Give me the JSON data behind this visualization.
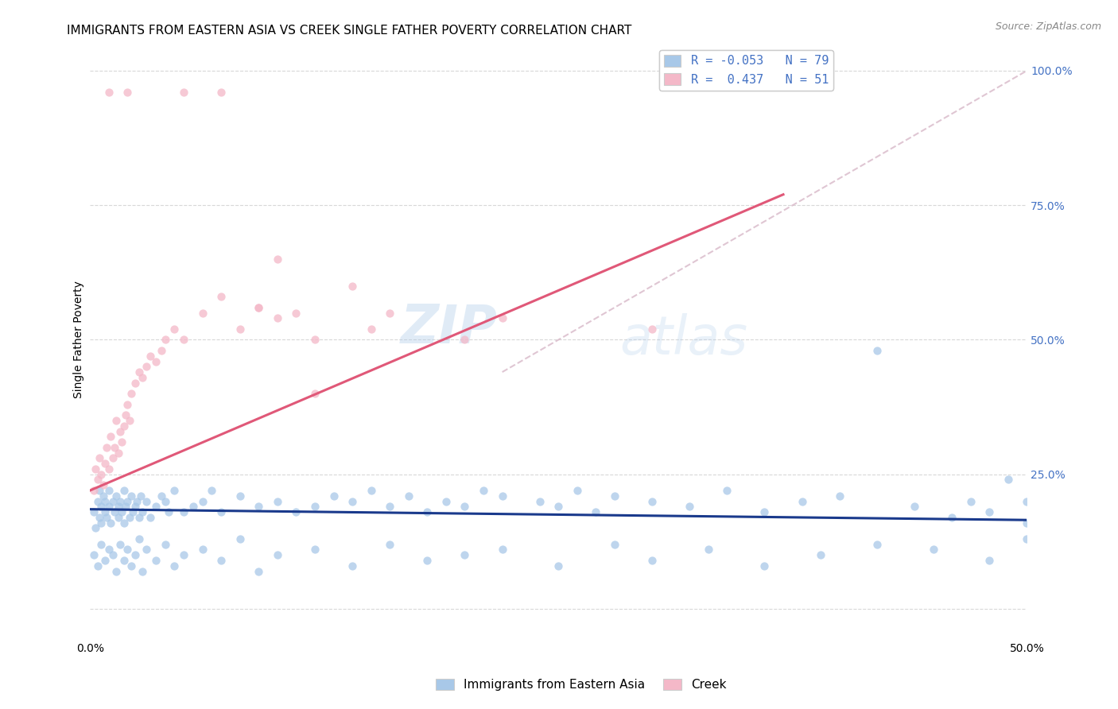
{
  "title": "IMMIGRANTS FROM EASTERN ASIA VS CREEK SINGLE FATHER POVERTY CORRELATION CHART",
  "source": "Source: ZipAtlas.com",
  "ylabel": "Single Father Poverty",
  "xlim": [
    0.0,
    0.5
  ],
  "ylim": [
    -0.05,
    1.05
  ],
  "xtick_positions": [
    0.0,
    0.1,
    0.2,
    0.3,
    0.4,
    0.5
  ],
  "xticklabels": [
    "0.0%",
    "",
    "",
    "",
    "",
    "50.0%"
  ],
  "ytick_positions": [
    0.0,
    0.25,
    0.5,
    0.75,
    1.0
  ],
  "yticklabels_right": [
    "",
    "25.0%",
    "50.0%",
    "75.0%",
    "100.0%"
  ],
  "blue_color": "#a8c8e8",
  "pink_color": "#f4b8c8",
  "blue_line_color": "#1a3a8c",
  "pink_line_color": "#e05878",
  "diag_line_color": "#d8b8c8",
  "legend_text_blue": "R = -0.053   N = 79",
  "legend_text_pink": "R =  0.437   N = 51",
  "legend_label_blue": "Immigrants from Eastern Asia",
  "legend_label_pink": "Creek",
  "watermark_zip": "ZIP",
  "watermark_atlas": "atlas",
  "blue_scatter_x": [
    0.002,
    0.003,
    0.004,
    0.005,
    0.005,
    0.006,
    0.006,
    0.007,
    0.008,
    0.008,
    0.009,
    0.01,
    0.01,
    0.011,
    0.012,
    0.013,
    0.014,
    0.015,
    0.015,
    0.016,
    0.017,
    0.018,
    0.018,
    0.019,
    0.02,
    0.021,
    0.022,
    0.023,
    0.024,
    0.025,
    0.026,
    0.027,
    0.028,
    0.03,
    0.032,
    0.035,
    0.038,
    0.04,
    0.042,
    0.045,
    0.05,
    0.055,
    0.06,
    0.065,
    0.07,
    0.08,
    0.09,
    0.1,
    0.11,
    0.12,
    0.13,
    0.14,
    0.15,
    0.16,
    0.17,
    0.18,
    0.19,
    0.2,
    0.21,
    0.22,
    0.24,
    0.25,
    0.26,
    0.27,
    0.28,
    0.3,
    0.32,
    0.34,
    0.36,
    0.38,
    0.4,
    0.42,
    0.44,
    0.46,
    0.47,
    0.48,
    0.49,
    0.5,
    0.5
  ],
  "blue_scatter_y": [
    0.18,
    0.15,
    0.2,
    0.17,
    0.22,
    0.19,
    0.16,
    0.21,
    0.18,
    0.2,
    0.17,
    0.19,
    0.22,
    0.16,
    0.2,
    0.18,
    0.21,
    0.17,
    0.19,
    0.2,
    0.18,
    0.22,
    0.16,
    0.19,
    0.2,
    0.17,
    0.21,
    0.18,
    0.19,
    0.2,
    0.17,
    0.21,
    0.18,
    0.2,
    0.17,
    0.19,
    0.21,
    0.2,
    0.18,
    0.22,
    0.18,
    0.19,
    0.2,
    0.22,
    0.18,
    0.21,
    0.19,
    0.2,
    0.18,
    0.19,
    0.21,
    0.2,
    0.22,
    0.19,
    0.21,
    0.18,
    0.2,
    0.19,
    0.22,
    0.21,
    0.2,
    0.19,
    0.22,
    0.18,
    0.21,
    0.2,
    0.19,
    0.22,
    0.18,
    0.2,
    0.21,
    0.48,
    0.19,
    0.17,
    0.2,
    0.18,
    0.24,
    0.2,
    0.16
  ],
  "blue_scatter_y_below": [
    0.1,
    0.08,
    0.12,
    0.09,
    0.11,
    0.1,
    0.07,
    0.12,
    0.09,
    0.11,
    0.08,
    0.1,
    0.13,
    0.07,
    0.11,
    0.09,
    0.12,
    0.08,
    0.1,
    0.11,
    0.09,
    0.13,
    0.07,
    0.1,
    0.11,
    0.08,
    0.12,
    0.09,
    0.1,
    0.11,
    0.08,
    0.12,
    0.09,
    0.11,
    0.08,
    0.1,
    0.12,
    0.11,
    0.09,
    0.13
  ],
  "blue_scatter_x_below": [
    0.002,
    0.004,
    0.006,
    0.008,
    0.01,
    0.012,
    0.014,
    0.016,
    0.018,
    0.02,
    0.022,
    0.024,
    0.026,
    0.028,
    0.03,
    0.035,
    0.04,
    0.045,
    0.05,
    0.06,
    0.07,
    0.08,
    0.09,
    0.1,
    0.12,
    0.14,
    0.16,
    0.18,
    0.2,
    0.22,
    0.25,
    0.28,
    0.3,
    0.33,
    0.36,
    0.39,
    0.42,
    0.45,
    0.48,
    0.5
  ],
  "pink_scatter_x": [
    0.002,
    0.003,
    0.004,
    0.005,
    0.006,
    0.007,
    0.008,
    0.009,
    0.01,
    0.011,
    0.012,
    0.013,
    0.014,
    0.015,
    0.016,
    0.017,
    0.018,
    0.019,
    0.02,
    0.021,
    0.022,
    0.024,
    0.026,
    0.028,
    0.03,
    0.032,
    0.035,
    0.038,
    0.04,
    0.045,
    0.05,
    0.06,
    0.07,
    0.08,
    0.09,
    0.1,
    0.11,
    0.12,
    0.14,
    0.16,
    0.01,
    0.02,
    0.05,
    0.07,
    0.09,
    0.1,
    0.12,
    0.15,
    0.2,
    0.22,
    0.3
  ],
  "pink_scatter_y": [
    0.22,
    0.26,
    0.24,
    0.28,
    0.25,
    0.23,
    0.27,
    0.3,
    0.26,
    0.32,
    0.28,
    0.3,
    0.35,
    0.29,
    0.33,
    0.31,
    0.34,
    0.36,
    0.38,
    0.35,
    0.4,
    0.42,
    0.44,
    0.43,
    0.45,
    0.47,
    0.46,
    0.48,
    0.5,
    0.52,
    0.5,
    0.55,
    0.58,
    0.52,
    0.56,
    0.65,
    0.55,
    0.4,
    0.6,
    0.55,
    0.96,
    0.96,
    0.96,
    0.96,
    0.56,
    0.54,
    0.5,
    0.52,
    0.5,
    0.54,
    0.52
  ],
  "blue_trend_x": [
    0.0,
    0.5
  ],
  "blue_trend_y": [
    0.185,
    0.165
  ],
  "pink_trend_x": [
    0.0,
    0.37
  ],
  "pink_trend_y": [
    0.22,
    0.77
  ],
  "diag_trend_x": [
    0.22,
    0.5
  ],
  "diag_trend_y": [
    0.44,
    1.0
  ],
  "title_fontsize": 11,
  "axis_label_fontsize": 10,
  "tick_fontsize": 10,
  "legend_fontsize": 11
}
